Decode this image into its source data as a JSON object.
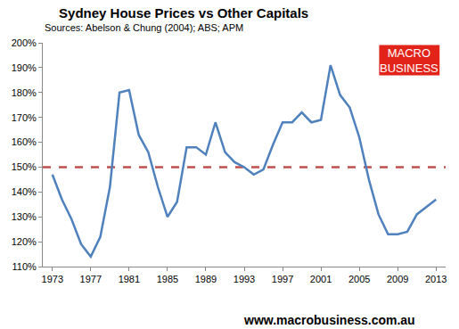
{
  "chart_data": {
    "type": "line",
    "title": "Sydney House Prices vs Other Capitals",
    "subtitle": "Sources: Abelson & Chung (2004); ABS; APM",
    "logo": [
      "MACRO",
      "BUSINESS"
    ],
    "footer": "www.macrobusiness.com.au",
    "x": [
      1973,
      1974,
      1975,
      1976,
      1977,
      1978,
      1979,
      1980,
      1981,
      1982,
      1983,
      1984,
      1985,
      1986,
      1987,
      1988,
      1989,
      1990,
      1991,
      1992,
      1993,
      1994,
      1995,
      1996,
      1997,
      1998,
      1999,
      2000,
      2001,
      2002,
      2003,
      2004,
      2005,
      2006,
      2007,
      2008,
      2009,
      2010,
      2011,
      2012,
      2013
    ],
    "series": [
      {
        "color": "#4f81bd",
        "values": [
          147,
          137,
          129,
          119,
          114,
          122,
          142,
          180,
          181,
          163,
          156,
          142,
          130,
          136,
          158,
          158,
          155,
          168,
          156,
          152,
          150,
          147,
          149,
          159,
          168,
          168,
          172,
          168,
          169,
          191,
          179,
          174,
          162,
          145,
          131,
          123,
          123,
          124,
          131,
          134,
          137
        ]
      }
    ],
    "threshold": {
      "value": 150,
      "color": "#c0504d",
      "line_style": "dashed"
    },
    "xlim": [
      1972,
      2014
    ],
    "xticks": [
      1973,
      1977,
      1981,
      1985,
      1989,
      1993,
      1997,
      2001,
      2005,
      2009,
      2013
    ],
    "ylim": [
      110,
      200
    ],
    "yticks": [
      {
        "value": 110,
        "label": "110%"
      },
      {
        "value": 120,
        "label": "120%"
      },
      {
        "value": 130,
        "label": "130%"
      },
      {
        "value": 140,
        "label": "140%"
      },
      {
        "value": 150,
        "label": "150%"
      },
      {
        "value": 160,
        "label": "160%"
      },
      {
        "value": 170,
        "label": "170%"
      },
      {
        "value": 180,
        "label": "180%"
      },
      {
        "value": 190,
        "label": "190%"
      },
      {
        "value": 200,
        "label": "200%"
      }
    ],
    "grid": false
  }
}
